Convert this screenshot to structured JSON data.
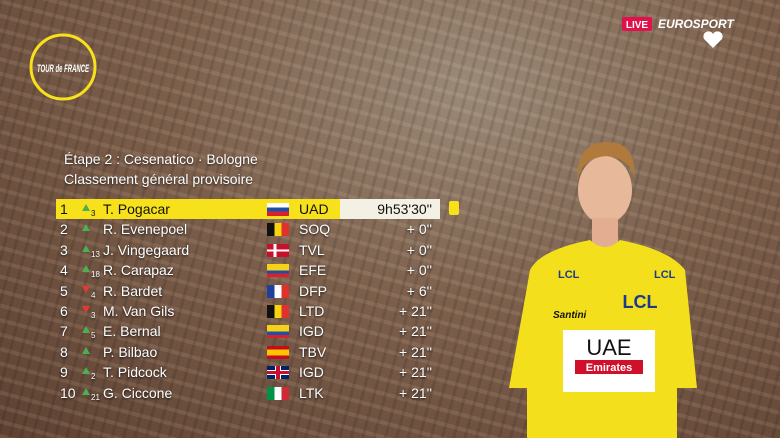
{
  "broadcast": {
    "live": "LIVE",
    "channel": "EUROSPORT",
    "logo": "TOUR de FRANCE"
  },
  "header": {
    "stage": "Étape 2 : Cesenatico ·  Bologne",
    "classification": "Classement général provisoire"
  },
  "table": {
    "rows": [
      {
        "rank": "1",
        "change": "3",
        "name": "T. Pogacar",
        "team": "UAD",
        "time": "9h53'30''"
      },
      {
        "rank": "2",
        "name": "R. Evenepoel",
        "team": "SOQ",
        "time": "+ 0''"
      },
      {
        "rank": "3",
        "change": "13",
        "name": "J. Vingegaard",
        "team": "TVL",
        "time": "+ 0''"
      },
      {
        "rank": "4",
        "change": "18",
        "name": "R. Carapaz",
        "team": "EFE",
        "time": "+ 0''"
      },
      {
        "rank": "5",
        "change": "4",
        "name": "R. Bardet",
        "team": "DFP",
        "time": "+ 6''"
      },
      {
        "rank": "6",
        "change": "3",
        "name": "M. Van Gils",
        "team": "LTD",
        "time": "+ 21''"
      },
      {
        "rank": "7",
        "change": "5",
        "name": "E. Bernal",
        "team": "IGD",
        "time": "+ 21''"
      },
      {
        "rank": "8",
        "name": "P. Bilbao",
        "team": "TBV",
        "time": "+ 21''"
      },
      {
        "rank": "9",
        "change": "2",
        "name": "T. Pidcock",
        "team": "IGD",
        "time": "+ 21''"
      },
      {
        "rank": "10",
        "change": "21",
        "name": "G. Ciccone",
        "team": "LTK",
        "time": "+ 21''"
      }
    ]
  },
  "jersey": {
    "sponsor": "LCL",
    "team": "UAE",
    "team2": "Emirates",
    "maker": "Santini"
  }
}
